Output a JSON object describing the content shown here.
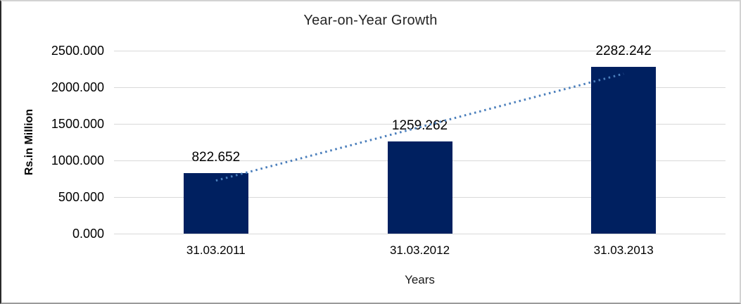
{
  "chart_data": {
    "type": "bar",
    "title": "Year-on-Year Growth",
    "categories": [
      "31.03.2011",
      "31.03.2012",
      "31.03.2013"
    ],
    "values": [
      822.652,
      1259.262,
      2282.242
    ],
    "value_labels": [
      "822.652",
      "1259.262",
      "2282.242"
    ],
    "xlabel": "Years",
    "ylabel": "Rs.in Million",
    "ylim": [
      0,
      2500
    ],
    "yticks": [
      0,
      500,
      1000,
      1500,
      2000,
      2500
    ],
    "ytick_labels": [
      "0.000",
      "500.000",
      "1000.000",
      "1500.000",
      "2000.000",
      "2500.000"
    ],
    "grid": "horizontal-only",
    "legend": "none",
    "trendline": {
      "type": "linear",
      "style": "dotted",
      "color": "#4a7ebb"
    },
    "colors": {
      "bar": "#002060",
      "gridline": "#d9d9d9",
      "text": "#000000",
      "title_text": "#262626",
      "background": "#ffffff"
    }
  }
}
